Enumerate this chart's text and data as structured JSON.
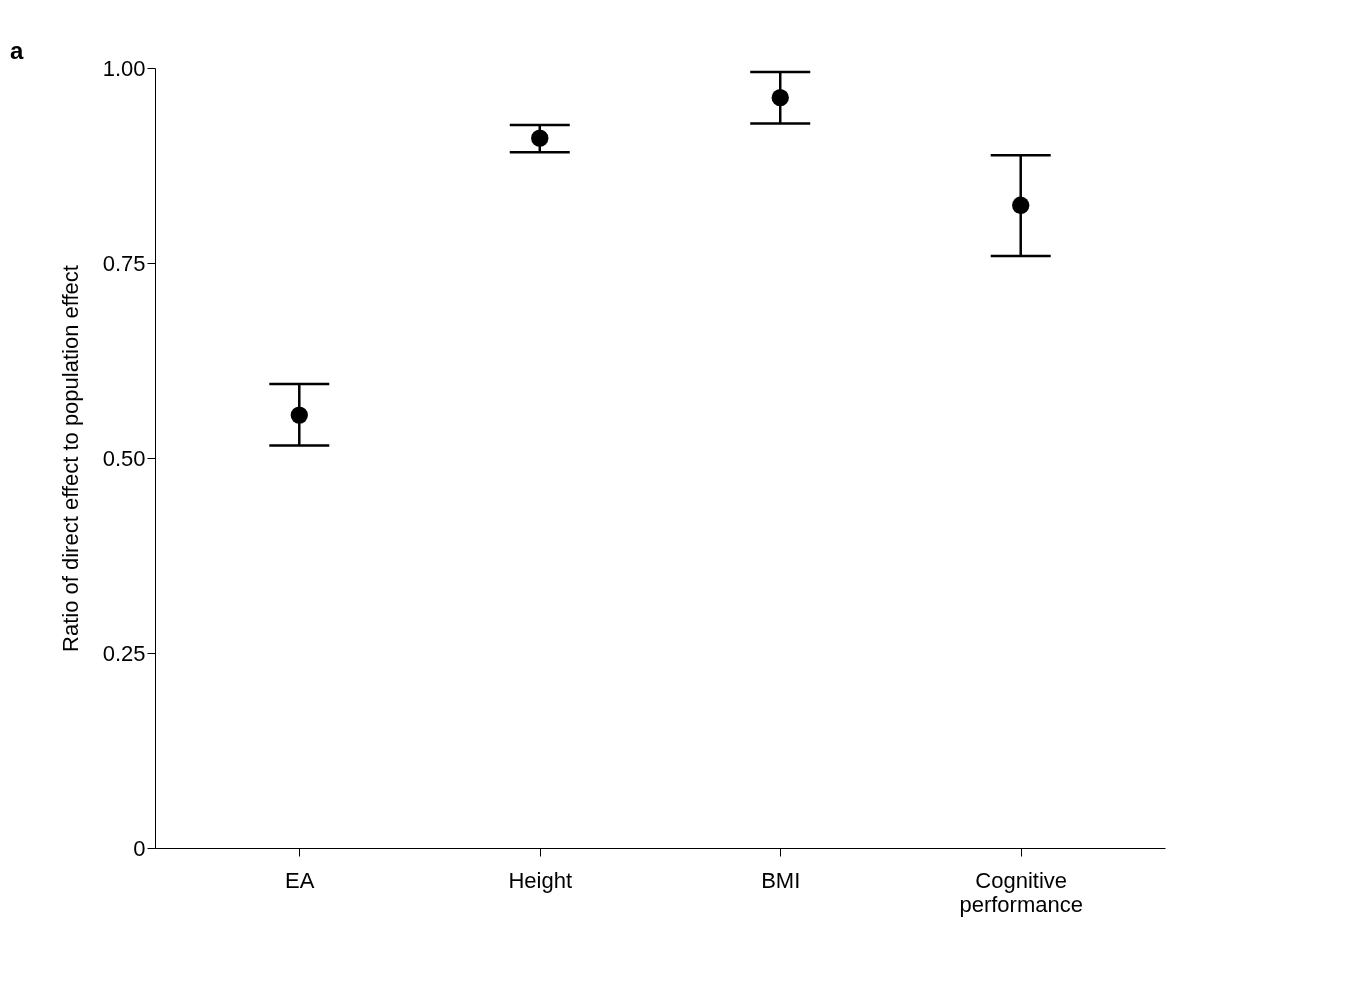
{
  "chart_data": {
    "type": "scatter",
    "ylabel": "Ratio of direct effect to population effect",
    "annotations": [
      "a"
    ],
    "categories": [
      "EA",
      "Height",
      "BMI",
      "Cognitive performance"
    ],
    "values": [
      0.555,
      0.91,
      0.962,
      0.824
    ],
    "errors": [
      [
        0.516,
        0.595
      ],
      [
        0.892,
        0.927
      ],
      [
        0.929,
        0.995
      ],
      [
        0.759,
        0.888
      ]
    ],
    "color": "#000000",
    "marker": "circle",
    "ylim": [
      0,
      1
    ],
    "yticks": [
      0,
      0.25,
      {
        "value": 0.5,
        "label": "0.50"
      },
      0.75,
      {
        "value": 1,
        "label": "1.00"
      }
    ],
    "grid": false
  }
}
